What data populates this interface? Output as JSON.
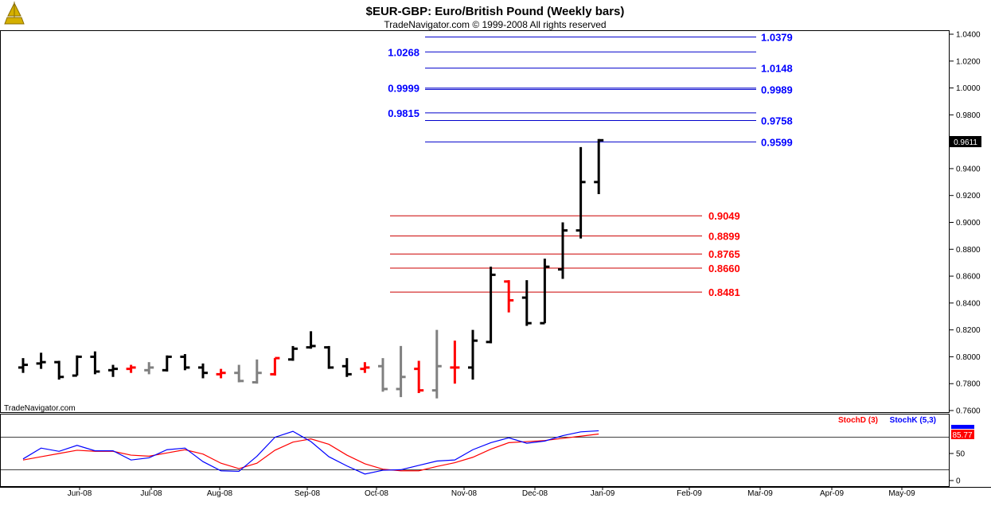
{
  "title": "$EUR-GBP:  Euro/British Pound  (Weekly bars)",
  "subtitle": "TradeNavigator.com © 1999-2008 All rights reserved",
  "watermark": "TradeNavigator.com",
  "last_price_tag": "0.9611",
  "chart_data": [
    {
      "type": "ohlc",
      "ylim": [
        0.75,
        1.045
      ],
      "y_ticks": [
        "1.0400",
        "1.0200",
        "1.0000",
        "0.9800",
        "0.9600",
        "0.9400",
        "0.9200",
        "0.9000",
        "0.8800",
        "0.8600",
        "0.8400",
        "0.8200",
        "0.8000",
        "0.7800",
        "0.7600"
      ],
      "x_ticks": [
        "Jun-08",
        "Jul-08",
        "Aug-08",
        "Sep-08",
        "Oct-08",
        "Nov-08",
        "Dec-08",
        "Jan-09",
        "Feb-09",
        "Mar-09",
        "Apr-09",
        "May-09"
      ],
      "colors": {
        "up": "#000000",
        "neutral": "#808080",
        "down": "#ff0000",
        "resistance": "#0000cc",
        "support": "#cc0000"
      },
      "bars": [
        {
          "w": 0,
          "o": 0.792,
          "h": 0.799,
          "l": 0.788,
          "c": 0.794,
          "color": "black"
        },
        {
          "w": 1,
          "o": 0.795,
          "h": 0.803,
          "l": 0.791,
          "c": 0.796,
          "color": "black"
        },
        {
          "w": 2,
          "o": 0.796,
          "h": 0.797,
          "l": 0.783,
          "c": 0.785,
          "color": "black"
        },
        {
          "w": 3,
          "o": 0.786,
          "h": 0.801,
          "l": 0.786,
          "c": 0.8,
          "color": "black"
        },
        {
          "w": 4,
          "o": 0.8,
          "h": 0.804,
          "l": 0.787,
          "c": 0.789,
          "color": "black"
        },
        {
          "w": 5,
          "o": 0.79,
          "h": 0.794,
          "l": 0.785,
          "c": 0.791,
          "color": "black"
        },
        {
          "w": 6,
          "o": 0.791,
          "h": 0.794,
          "l": 0.788,
          "c": 0.792,
          "color": "red"
        },
        {
          "w": 7,
          "o": 0.79,
          "h": 0.796,
          "l": 0.787,
          "c": 0.792,
          "color": "gray"
        },
        {
          "w": 8,
          "o": 0.79,
          "h": 0.801,
          "l": 0.789,
          "c": 0.8,
          "color": "black"
        },
        {
          "w": 9,
          "o": 0.8,
          "h": 0.802,
          "l": 0.79,
          "c": 0.792,
          "color": "black"
        },
        {
          "w": 10,
          "o": 0.792,
          "h": 0.795,
          "l": 0.784,
          "c": 0.788,
          "color": "black"
        },
        {
          "w": 11,
          "o": 0.787,
          "h": 0.791,
          "l": 0.784,
          "c": 0.788,
          "color": "red"
        },
        {
          "w": 12,
          "o": 0.788,
          "h": 0.794,
          "l": 0.781,
          "c": 0.782,
          "color": "gray"
        },
        {
          "w": 13,
          "o": 0.781,
          "h": 0.798,
          "l": 0.78,
          "c": 0.788,
          "color": "gray"
        },
        {
          "w": 14,
          "o": 0.787,
          "h": 0.799,
          "l": 0.786,
          "c": 0.799,
          "color": "red"
        },
        {
          "w": 15,
          "o": 0.798,
          "h": 0.808,
          "l": 0.797,
          "c": 0.806,
          "color": "black"
        },
        {
          "w": 16,
          "o": 0.807,
          "h": 0.819,
          "l": 0.806,
          "c": 0.808,
          "color": "black"
        },
        {
          "w": 17,
          "o": 0.807,
          "h": 0.808,
          "l": 0.791,
          "c": 0.792,
          "color": "black"
        },
        {
          "w": 18,
          "o": 0.793,
          "h": 0.799,
          "l": 0.785,
          "c": 0.787,
          "color": "black"
        },
        {
          "w": 19,
          "o": 0.791,
          "h": 0.796,
          "l": 0.788,
          "c": 0.792,
          "color": "red"
        },
        {
          "w": 20,
          "o": 0.793,
          "h": 0.799,
          "l": 0.774,
          "c": 0.776,
          "color": "gray"
        },
        {
          "w": 21,
          "o": 0.776,
          "h": 0.808,
          "l": 0.77,
          "c": 0.785,
          "color": "gray"
        },
        {
          "w": 22,
          "o": 0.791,
          "h": 0.797,
          "l": 0.773,
          "c": 0.775,
          "color": "red"
        },
        {
          "w": 23,
          "o": 0.775,
          "h": 0.82,
          "l": 0.769,
          "c": 0.793,
          "color": "gray"
        },
        {
          "w": 24,
          "o": 0.792,
          "h": 0.812,
          "l": 0.78,
          "c": 0.792,
          "color": "red"
        },
        {
          "w": 25,
          "o": 0.792,
          "h": 0.82,
          "l": 0.783,
          "c": 0.812,
          "color": "black"
        },
        {
          "w": 26,
          "o": 0.811,
          "h": 0.867,
          "l": 0.81,
          "c": 0.861,
          "color": "black"
        },
        {
          "w": 27,
          "o": 0.856,
          "h": 0.857,
          "l": 0.833,
          "c": 0.842,
          "color": "red"
        },
        {
          "w": 28,
          "o": 0.844,
          "h": 0.857,
          "l": 0.823,
          "c": 0.825,
          "color": "black"
        },
        {
          "w": 29,
          "o": 0.825,
          "h": 0.873,
          "l": 0.825,
          "c": 0.867,
          "color": "black"
        },
        {
          "w": 30,
          "o": 0.865,
          "h": 0.9,
          "l": 0.858,
          "c": 0.894,
          "color": "black"
        },
        {
          "w": 31,
          "o": 0.894,
          "h": 0.956,
          "l": 0.888,
          "c": 0.93,
          "color": "black"
        },
        {
          "w": 32,
          "o": 0.93,
          "h": 0.962,
          "l": 0.921,
          "c": 0.9611,
          "color": "black"
        }
      ],
      "levels": [
        {
          "value": "1.0379",
          "kind": "resistance"
        },
        {
          "value": "1.0268",
          "kind": "resistance"
        },
        {
          "value": "1.0148",
          "kind": "resistance"
        },
        {
          "value": "0.9999",
          "kind": "resistance"
        },
        {
          "value": "0.9989",
          "kind": "resistance"
        },
        {
          "value": "0.9815",
          "kind": "resistance"
        },
        {
          "value": "0.9758",
          "kind": "resistance"
        },
        {
          "value": "0.9599",
          "kind": "resistance"
        },
        {
          "value": "0.9049",
          "kind": "support"
        },
        {
          "value": "0.8899",
          "kind": "support"
        },
        {
          "value": "0.8765",
          "kind": "support"
        },
        {
          "value": "0.8660",
          "kind": "support"
        },
        {
          "value": "0.8481",
          "kind": "support"
        }
      ]
    },
    {
      "type": "line",
      "legend": [
        "StochD (3)",
        "StochK (5,3)"
      ],
      "ylim": [
        0,
        100
      ],
      "y_ticks": [
        "50",
        "0"
      ],
      "ref_lines": [
        80,
        20
      ],
      "value_tag_d": "85.77",
      "series": [
        {
          "name": "StochD (3)",
          "color": "#ff0000",
          "values": [
            38,
            44,
            50,
            56,
            54,
            54,
            47,
            45,
            51,
            57,
            49,
            32,
            22,
            32,
            56,
            71,
            77,
            67,
            47,
            31,
            21,
            18,
            18,
            26,
            33,
            43,
            58,
            70,
            72,
            74,
            78,
            82,
            86
          ]
        },
        {
          "name": "StochK (5,3)",
          "color": "#0000ff",
          "values": [
            40,
            60,
            54,
            65,
            55,
            55,
            38,
            42,
            57,
            60,
            35,
            18,
            17,
            45,
            80,
            91,
            72,
            44,
            27,
            12,
            19,
            20,
            28,
            36,
            38,
            57,
            70,
            79,
            69,
            73,
            83,
            90,
            92
          ]
        }
      ]
    }
  ]
}
